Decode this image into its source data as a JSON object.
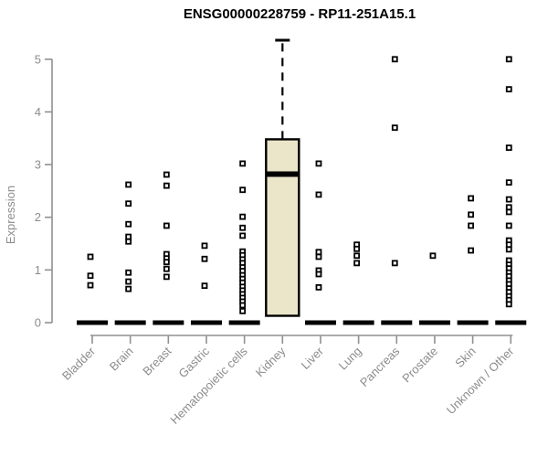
{
  "chart_data": {
    "type": "boxplot",
    "title": "ENSG00000228759 - RP11-251A15.1",
    "ylabel": "Expression",
    "xlabel": "",
    "ylim": [
      0,
      5
    ],
    "yticks": [
      0,
      1,
      2,
      3,
      4,
      5
    ],
    "grid": false,
    "legend": false,
    "categories": [
      "Bladder",
      "Brain",
      "Breast",
      "Gastric",
      "Hematopoietic cells",
      "Kidney",
      "Liver",
      "Lung",
      "Pancreas",
      "Prostate",
      "Skin",
      "Unknown / Other"
    ],
    "colors": {
      "axis_line": "#909090",
      "tick_text": "#8c8c8c",
      "title_text": "#000000",
      "box_fill": "#ebe6ca",
      "box_stroke": "#000000",
      "marker": "#000000"
    },
    "series": [
      {
        "category": "Bladder",
        "median": 0,
        "points": [
          1.25,
          0.89,
          0.71
        ]
      },
      {
        "category": "Brain",
        "median": 0,
        "points": [
          2.62,
          2.26,
          1.87,
          1.63,
          1.54,
          0.95,
          0.78,
          0.64
        ]
      },
      {
        "category": "Breast",
        "median": 0,
        "points": [
          2.81,
          2.6,
          1.84,
          1.3,
          1.22,
          1.15,
          1.02,
          0.87
        ]
      },
      {
        "category": "Gastric",
        "median": 0,
        "points": [
          1.46,
          1.21,
          0.7
        ]
      },
      {
        "category": "Hematopoietic cells",
        "median": 0,
        "points": [
          3.02,
          2.52,
          2.01,
          1.8,
          1.65,
          1.35,
          1.28,
          1.2,
          1.13,
          1.05,
          0.98,
          0.9,
          0.83,
          0.76,
          0.68,
          0.61,
          0.54,
          0.47,
          0.4,
          0.33,
          0.22
        ]
      },
      {
        "category": "Kidney",
        "box": {
          "q1": 0.13,
          "median": 2.82,
          "q3": 3.48,
          "whisker_high": 5.36,
          "whisker_style": "dashed"
        },
        "points": []
      },
      {
        "category": "Liver",
        "median": 0,
        "points": [
          3.02,
          2.43,
          1.34,
          1.25,
          0.99,
          0.92,
          0.67
        ]
      },
      {
        "category": "Lung",
        "median": 0,
        "points": [
          1.48,
          1.4,
          1.27,
          1.13
        ]
      },
      {
        "category": "Pancreas",
        "median": 0,
        "points": [
          5.0,
          3.7,
          1.13
        ]
      },
      {
        "category": "Prostate",
        "median": 0,
        "points": [
          1.27
        ]
      },
      {
        "category": "Skin",
        "median": 0,
        "points": [
          2.36,
          2.05,
          1.84,
          1.37
        ]
      },
      {
        "category": "Unknown / Other",
        "median": 0,
        "points": [
          5.0,
          4.43,
          3.32,
          2.66,
          2.34,
          2.19,
          2.1,
          1.84,
          1.56,
          1.48,
          1.39,
          1.18,
          1.1,
          1.03,
          0.95,
          0.88,
          0.8,
          0.73,
          0.65,
          0.58,
          0.5,
          0.43,
          0.35
        ]
      }
    ]
  }
}
